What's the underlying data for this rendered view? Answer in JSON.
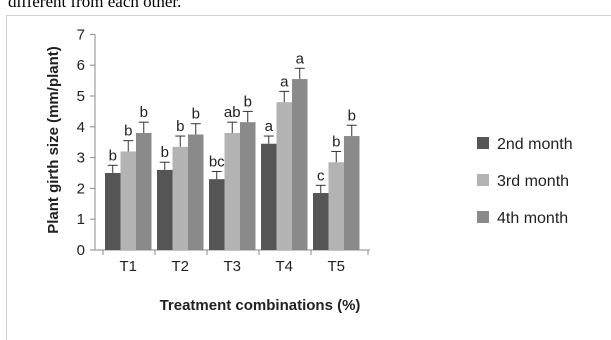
{
  "caption_fragment": "different from each other.",
  "chart_data": {
    "type": "bar",
    "title": "",
    "xlabel": "Treatment combinations (%)",
    "ylabel": "Plant girth size (mm/plant)",
    "ylim": [
      0,
      7
    ],
    "yticks": [
      0,
      1,
      2,
      3,
      4,
      5,
      6,
      7
    ],
    "grid": false,
    "legend_position": "right",
    "categories": [
      "T1",
      "T2",
      "T3",
      "T4",
      "T5"
    ],
    "series": [
      {
        "name": "2nd month",
        "color": "#555555",
        "values": [
          2.5,
          2.6,
          2.3,
          3.45,
          1.85
        ],
        "errors": [
          0.25,
          0.25,
          0.25,
          0.25,
          0.25
        ],
        "labels": [
          "b",
          "b",
          "bc",
          "a",
          "c"
        ]
      },
      {
        "name": "3rd month",
        "color": "#b3b3b3",
        "values": [
          3.2,
          3.35,
          3.8,
          4.8,
          2.85
        ],
        "errors": [
          0.35,
          0.35,
          0.35,
          0.35,
          0.35
        ],
        "labels": [
          "b",
          "b",
          "ab",
          "a",
          "b"
        ]
      },
      {
        "name": "4th month",
        "color": "#8a8a8a",
        "values": [
          3.8,
          3.75,
          4.15,
          5.55,
          3.7
        ],
        "errors": [
          0.35,
          0.35,
          0.35,
          0.35,
          0.35
        ],
        "labels": [
          "b",
          "b",
          "b",
          "a",
          "b"
        ]
      }
    ]
  }
}
